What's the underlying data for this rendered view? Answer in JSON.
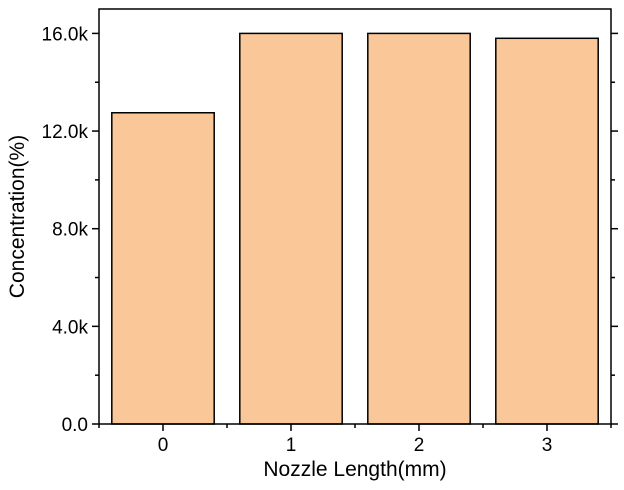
{
  "chart_data": {
    "type": "bar",
    "categories": [
      "0",
      "1",
      "2",
      "3"
    ],
    "values": [
      12750,
      16000,
      16000,
      15800
    ],
    "xlabel": "Nozzle Length(mm)",
    "ylabel": "Concentration(%)",
    "ylim": [
      0,
      17000
    ],
    "yticks": [
      0,
      4000,
      8000,
      12000,
      16000
    ],
    "ytick_labels": [
      "0.0",
      "4.0k",
      "8.0k",
      "12.0k",
      "16.0k"
    ],
    "bar_color": "#FAC898",
    "bar_edge_color": "#000000",
    "grid": false,
    "legend": "none"
  }
}
